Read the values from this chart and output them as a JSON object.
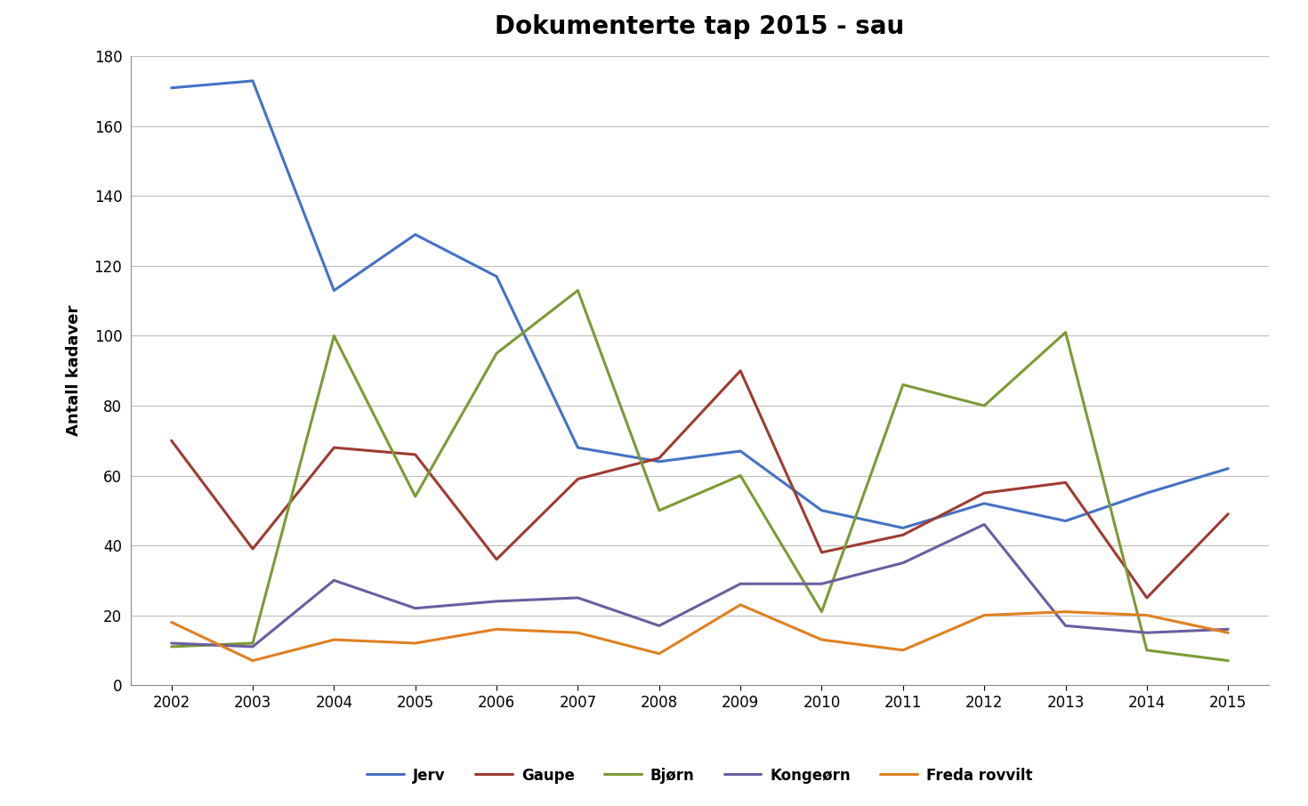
{
  "title": "Dokumenterte tap 2015 - sau",
  "ylabel": "Antall kadaver",
  "years": [
    2002,
    2003,
    2004,
    2005,
    2006,
    2007,
    2008,
    2009,
    2010,
    2011,
    2012,
    2013,
    2014,
    2015
  ],
  "series": {
    "Jerv": [
      171,
      173,
      113,
      129,
      117,
      68,
      64,
      67,
      50,
      45,
      52,
      47,
      55,
      62
    ],
    "Gaupe": [
      70,
      39,
      68,
      66,
      36,
      59,
      65,
      90,
      38,
      43,
      55,
      58,
      25,
      49
    ],
    "Bjørn": [
      11,
      12,
      100,
      54,
      95,
      113,
      50,
      60,
      21,
      86,
      80,
      101,
      10,
      7
    ],
    "Kongeørn": [
      12,
      11,
      30,
      22,
      24,
      25,
      17,
      29,
      29,
      35,
      46,
      17,
      15,
      16
    ],
    "Freda rovvilt": [
      18,
      7,
      13,
      12,
      16,
      15,
      9,
      23,
      13,
      10,
      20,
      21,
      20,
      15
    ]
  },
  "colors": {
    "Jerv": "#4472C4",
    "Gaupe": "#9E3B31",
    "Bjørn": "#7B9B35",
    "Kongeørn": "#6B5DA0",
    "Freda rovvilt": "#E08020"
  },
  "ylim": [
    0,
    180
  ],
  "yticks": [
    0,
    20,
    40,
    60,
    80,
    100,
    120,
    140,
    160,
    180
  ],
  "background_color": "#FFFFFF",
  "grid_color": "#BEBEBE",
  "title_fontsize": 20,
  "axis_label_fontsize": 13,
  "tick_fontsize": 12,
  "legend_fontsize": 12,
  "linewidth": 2.2
}
